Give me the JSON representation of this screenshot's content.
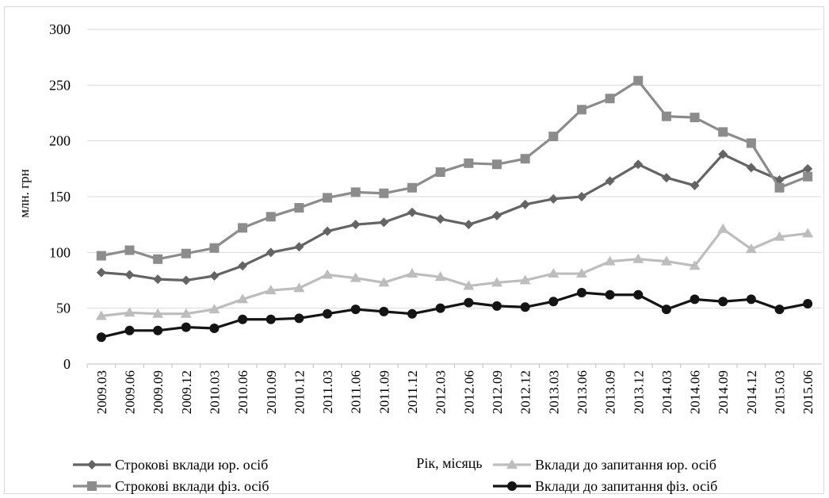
{
  "chart_data": {
    "type": "line",
    "title": "",
    "xlabel": "Рік, місяць",
    "ylabel": "млн. грн",
    "ylim": [
      0,
      300
    ],
    "yticks": [
      "0",
      "50",
      "100",
      "150",
      "200",
      "250",
      "300"
    ],
    "grid": true,
    "legend_position": "bottom",
    "categories": [
      "2009.03",
      "2009.06",
      "2009.09",
      "2009.12",
      "2010.03",
      "2010.06",
      "2010.09",
      "2010.12",
      "2011.03",
      "2011.06",
      "2011.09",
      "2011.12",
      "2012.03",
      "2012.06",
      "2012.09",
      "2012.12",
      "2013.03",
      "2013.06",
      "2013.09",
      "2013.12",
      "2014.03",
      "2014.06",
      "2014.09",
      "2014.12",
      "2015.03",
      "2015.06"
    ],
    "series": [
      {
        "name": "Строкові вклади юр. осіб",
        "marker": "diamond",
        "color": "#646464",
        "values": [
          82,
          80,
          76,
          75,
          79,
          88,
          100,
          105,
          119,
          125,
          127,
          136,
          130,
          125,
          133,
          143,
          148,
          150,
          164,
          179,
          167,
          160,
          188,
          176,
          165,
          175
        ]
      },
      {
        "name": "Строкові вклади фіз. осіб",
        "marker": "square",
        "color": "#8c8c8c",
        "values": [
          97,
          102,
          94,
          99,
          104,
          122,
          132,
          140,
          149,
          154,
          153,
          158,
          172,
          180,
          179,
          184,
          204,
          228,
          238,
          254,
          222,
          221,
          208,
          198,
          158,
          168
        ]
      },
      {
        "name": "Вклади до запитання юр. осіб",
        "marker": "triangle",
        "color": "#bdbdbd",
        "values": [
          43,
          46,
          45,
          45,
          49,
          58,
          66,
          68,
          80,
          77,
          73,
          81,
          78,
          70,
          73,
          75,
          81,
          81,
          92,
          94,
          92,
          88,
          121,
          103,
          114,
          117
        ]
      },
      {
        "name": "Вклади до запитання фіз. осіб",
        "marker": "circle",
        "color": "#141414",
        "values": [
          24,
          30,
          30,
          33,
          32,
          40,
          40,
          41,
          45,
          49,
          47,
          45,
          50,
          55,
          52,
          51,
          56,
          64,
          62,
          62,
          49,
          58,
          56,
          58,
          49,
          54
        ]
      }
    ]
  }
}
